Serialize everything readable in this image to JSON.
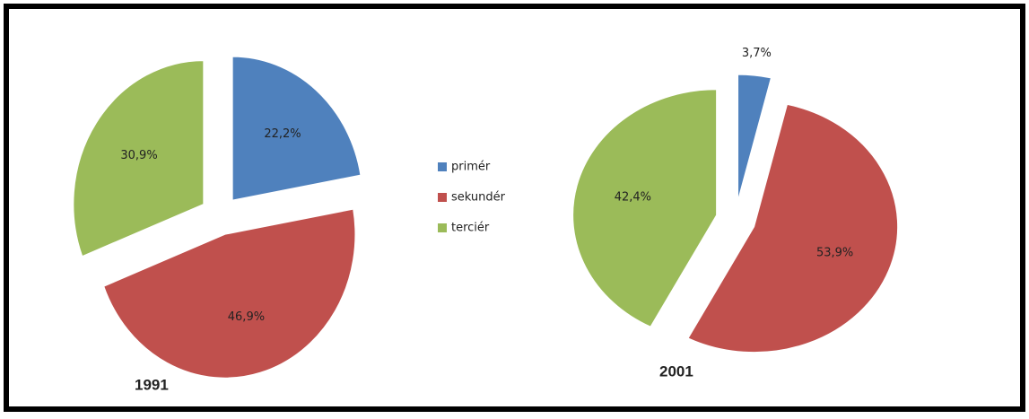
{
  "chart_data": [
    {
      "type": "pie",
      "title": "1991",
      "categories": [
        "primér",
        "sekundér",
        "terciér"
      ],
      "values": [
        22.2,
        46.9,
        30.9
      ],
      "value_labels": [
        "22,2%",
        "46,9%",
        "30,9%"
      ],
      "colors": [
        "#4f81bd",
        "#c0504d",
        "#9bbb59"
      ]
    },
    {
      "type": "pie",
      "title": "2001",
      "categories": [
        "primér",
        "sekundér",
        "terciér"
      ],
      "values": [
        3.7,
        53.9,
        42.4
      ],
      "value_labels": [
        "3,7%",
        "53,9%",
        "42,4%"
      ],
      "colors": [
        "#4f81bd",
        "#c0504d",
        "#9bbb59"
      ]
    }
  ]
}
